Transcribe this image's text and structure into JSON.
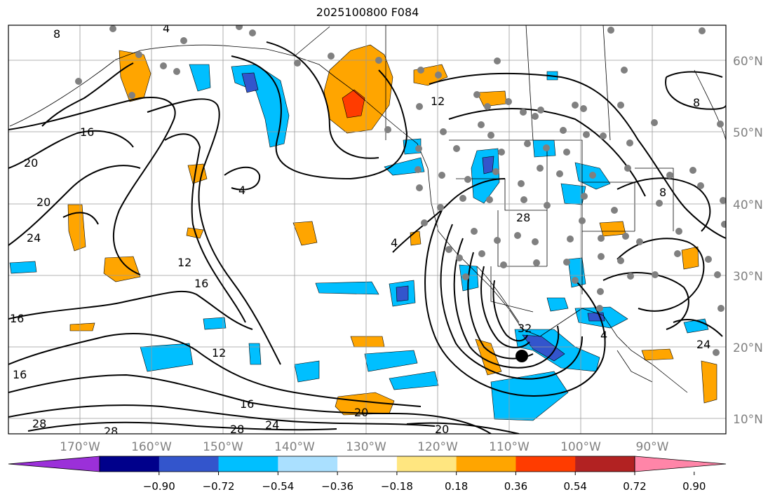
{
  "title": "2025100800 F084",
  "lon_ticks": [
    "170°W",
    "160°W",
    "150°W",
    "140°W",
    "130°W",
    "120°W",
    "110°W",
    "100°W",
    "90°W"
  ],
  "lat_ticks": [
    "60°N",
    "50°N",
    "40°N",
    "30°N",
    "20°N",
    "10°N"
  ],
  "contour_labels": [
    "8",
    "4",
    "16",
    "20",
    "20",
    "24",
    "12",
    "16",
    "4",
    "4",
    "12",
    "28",
    "32",
    "4",
    "8",
    "8",
    "24",
    "16",
    "12",
    "16",
    "28",
    "28",
    "24",
    "28",
    "20",
    "20",
    "16"
  ],
  "colorbar": {
    "tick_labels": [
      "−0.90",
      "−0.72",
      "−0.54",
      "−0.36",
      "−0.18",
      "0.18",
      "0.36",
      "0.54",
      "0.72",
      "0.90"
    ],
    "colors": [
      "#9b30d9",
      "#00008b",
      "#3355cc",
      "#00bfff",
      "#aae0ff",
      "#ffffff",
      "#ffe680",
      "#ffa500",
      "#ff3c00",
      "#b22222",
      "#ff85a8"
    ]
  },
  "colors": {
    "contour": "#000000",
    "grid": "#9a9a9a",
    "tick_text": "#808080",
    "station_dot": "#808080"
  }
}
